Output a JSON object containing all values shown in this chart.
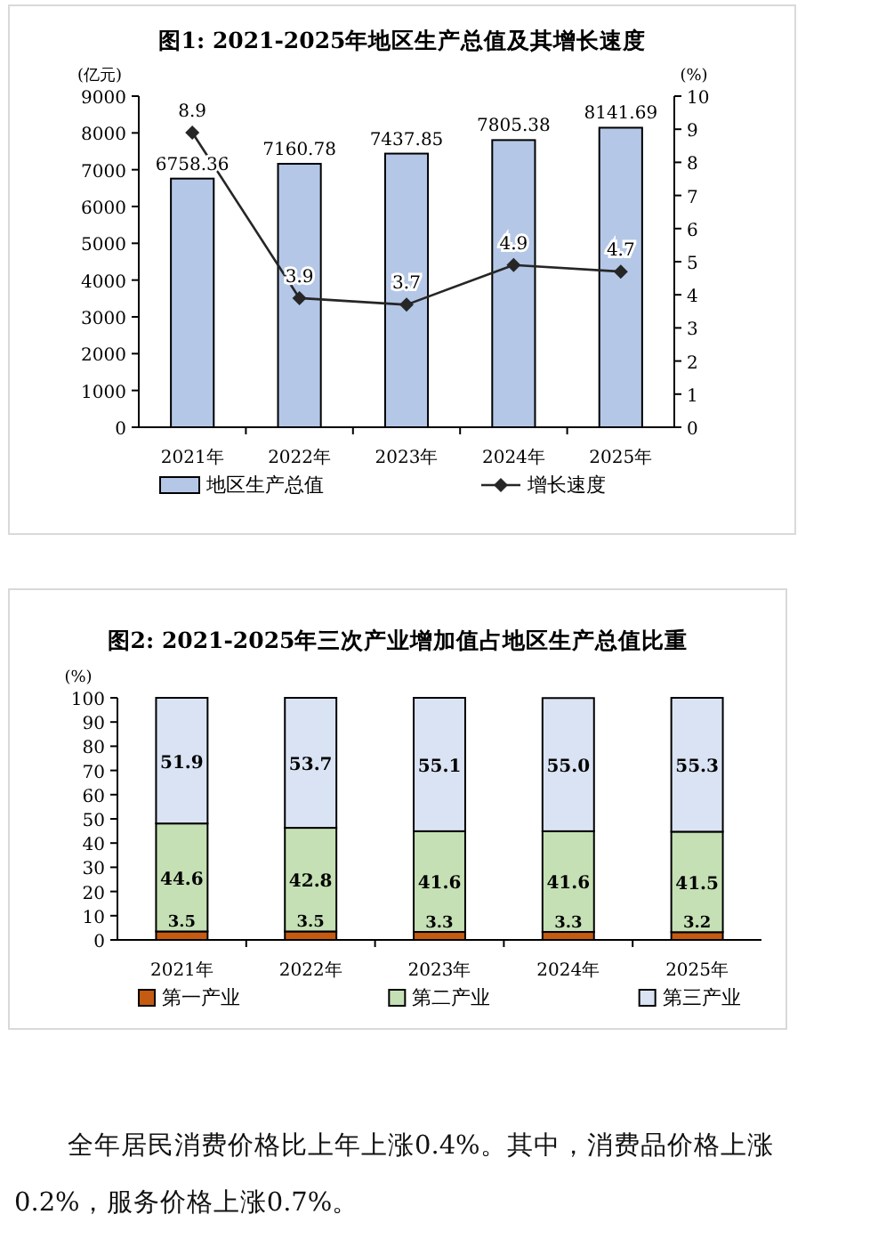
{
  "chart_data": [
    {
      "type": "bar",
      "title": "图1: 2021-2025年地区生产总值及其增长速度",
      "ylabel": "(亿元)",
      "y2label": "(%)",
      "categories": [
        "2021年",
        "2022年",
        "2023年",
        "2024年",
        "2025年"
      ],
      "series": [
        {
          "name": "地区生产总值",
          "color": "#b4c7e7",
          "values": [
            6758.36,
            7160.78,
            7437.85,
            7805.38,
            8141.69
          ]
        },
        {
          "name": "增长速度",
          "type": "line",
          "axis": "y2",
          "color": "#262626",
          "marker": "diamond",
          "values": [
            8.9,
            3.9,
            3.7,
            4.9,
            4.7
          ]
        }
      ],
      "ylim": [
        0,
        9000
      ],
      "yticks": [
        0,
        1000,
        2000,
        3000,
        4000,
        5000,
        6000,
        7000,
        8000,
        9000
      ],
      "y2lim": [
        0,
        10
      ],
      "y2ticks": [
        0,
        1,
        2,
        3,
        4,
        5,
        6,
        7,
        8,
        9,
        10
      ],
      "data_labels": true,
      "legend": "bottom",
      "grid": false
    },
    {
      "type": "bar",
      "title": "图2: 2021-2025年三次产业增加值占地区生产总值比重",
      "ylabel": "(%)",
      "categories": [
        "2021年",
        "2022年",
        "2023年",
        "2024年",
        "2025年"
      ],
      "stacked": true,
      "series": [
        {
          "name": "第一产业",
          "color": "#c55a11",
          "values": [
            3.5,
            3.5,
            3.3,
            3.3,
            3.2
          ],
          "value_labels": [
            "3.5",
            "3.5",
            "3.3",
            "3.3",
            "3.2"
          ]
        },
        {
          "name": "第二产业",
          "color": "#c5e0b4",
          "values": [
            44.6,
            42.8,
            41.6,
            41.6,
            41.5
          ],
          "value_labels": [
            "44.6",
            "42.8",
            "41.6",
            "41.6",
            "41.5"
          ]
        },
        {
          "name": "第三产业",
          "color": "#dae3f3",
          "values": [
            51.9,
            53.7,
            55.1,
            55.0,
            55.3
          ],
          "value_labels": [
            "51.9",
            "53.7",
            "55.1",
            "55.0",
            "55.3"
          ]
        }
      ],
      "ylim": [
        0,
        100
      ],
      "yticks": [
        0,
        10,
        20,
        30,
        40,
        50,
        60,
        70,
        80,
        90,
        100
      ],
      "legend": "bottom",
      "grid": false,
      "annotations": [
        "全年居民消费价格比上年上涨0.4%。其中，消费品价格上涨0.2%，服务价格上涨0.7%。"
      ]
    }
  ]
}
